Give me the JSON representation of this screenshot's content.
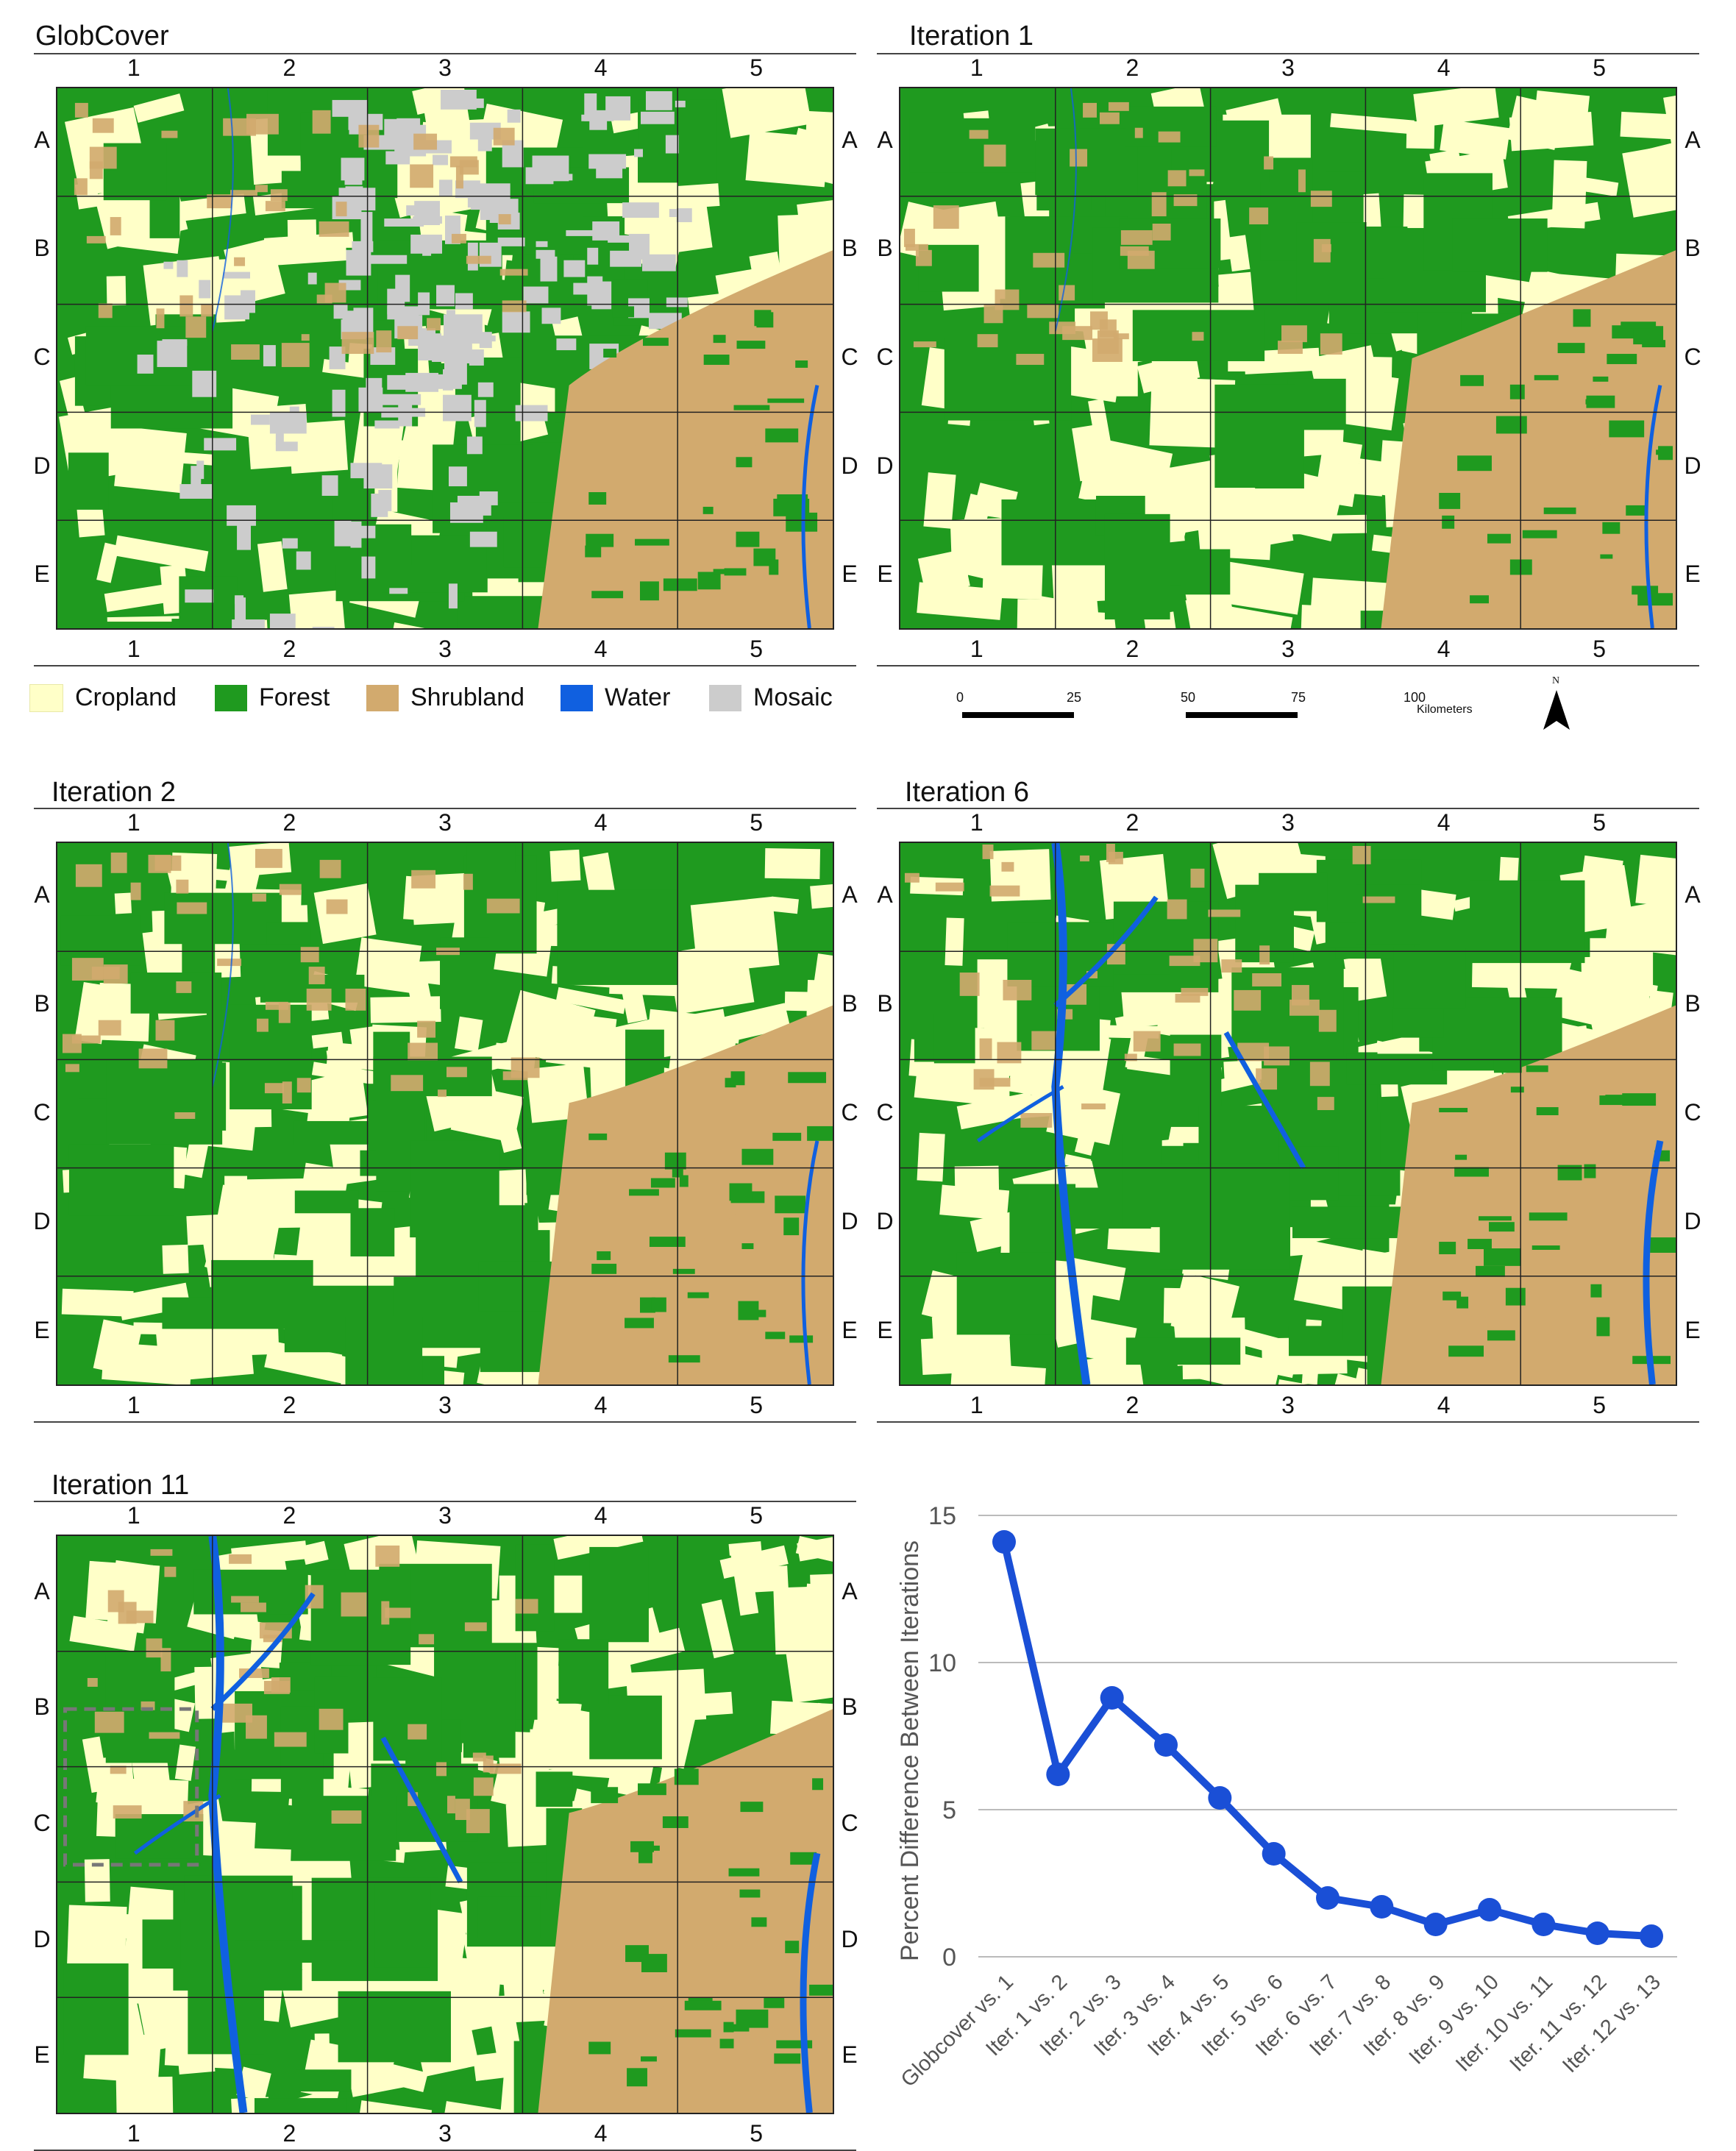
{
  "panels": [
    {
      "id": "globcover",
      "title": "GlobCover",
      "mirror_right_labels": true,
      "variant": "globcover"
    },
    {
      "id": "iter1",
      "title": "Iteration 1",
      "mirror_right_labels": true,
      "variant": "iter1"
    },
    {
      "id": "iter2",
      "title": "Iteration 2",
      "mirror_right_labels": true,
      "variant": "iter2"
    },
    {
      "id": "iter6",
      "title": "Iteration 6",
      "mirror_right_labels": true,
      "variant": "iter6"
    },
    {
      "id": "iter11",
      "title": "Iteration 11",
      "mirror_right_labels": true,
      "variant": "iter11"
    }
  ],
  "grid": {
    "columns": [
      "1",
      "2",
      "3",
      "4",
      "5"
    ],
    "rows": [
      "A",
      "B",
      "C",
      "D",
      "E"
    ]
  },
  "legend": [
    {
      "label": "Cropland",
      "color": "#ffffc8"
    },
    {
      "label": "Forest",
      "color": "#1f9a1f"
    },
    {
      "label": "Shrubland",
      "color": "#d2aa6e"
    },
    {
      "label": "Water",
      "color": "#1060e0"
    },
    {
      "label": "Mosaic",
      "color": "#cccccc"
    }
  ],
  "scale": {
    "ticks": [
      "0",
      "25",
      "50",
      "75",
      "100"
    ],
    "unit": "Kilometers",
    "north": "N"
  },
  "colors": {
    "cropland": "#ffffc8",
    "forest": "#1f9a1f",
    "shrubland": "#d2aa6e",
    "water": "#1060e0",
    "mosaic": "#cccccc",
    "line": "#1a4fd6",
    "gridline": "#bbbbbb"
  },
  "chart_data": {
    "type": "line",
    "ylabel": "Percent Difference Between Iterations",
    "xlabel": "",
    "ylim": [
      0,
      15
    ],
    "yticks": [
      0,
      5,
      10,
      15
    ],
    "categories": [
      "Globcover vs. 1",
      "Iter. 1 vs. 2",
      "Iter. 2 vs. 3",
      "Iter. 3 vs. 4",
      "Iter. 4 vs. 5",
      "Iter. 5 vs. 6",
      "Iter. 6 vs. 7",
      "Iter. 7 vs. 8",
      "Iter. 8 vs. 9",
      "Iter. 9 vs. 10",
      "Iter. 10 vs. 11",
      "Iter. 11 vs. 12",
      "Iter. 12 vs. 13"
    ],
    "values": [
      14.1,
      6.2,
      8.8,
      7.2,
      5.4,
      3.5,
      2.0,
      1.7,
      1.1,
      1.6,
      1.1,
      0.8,
      0.7
    ],
    "grid": true
  }
}
